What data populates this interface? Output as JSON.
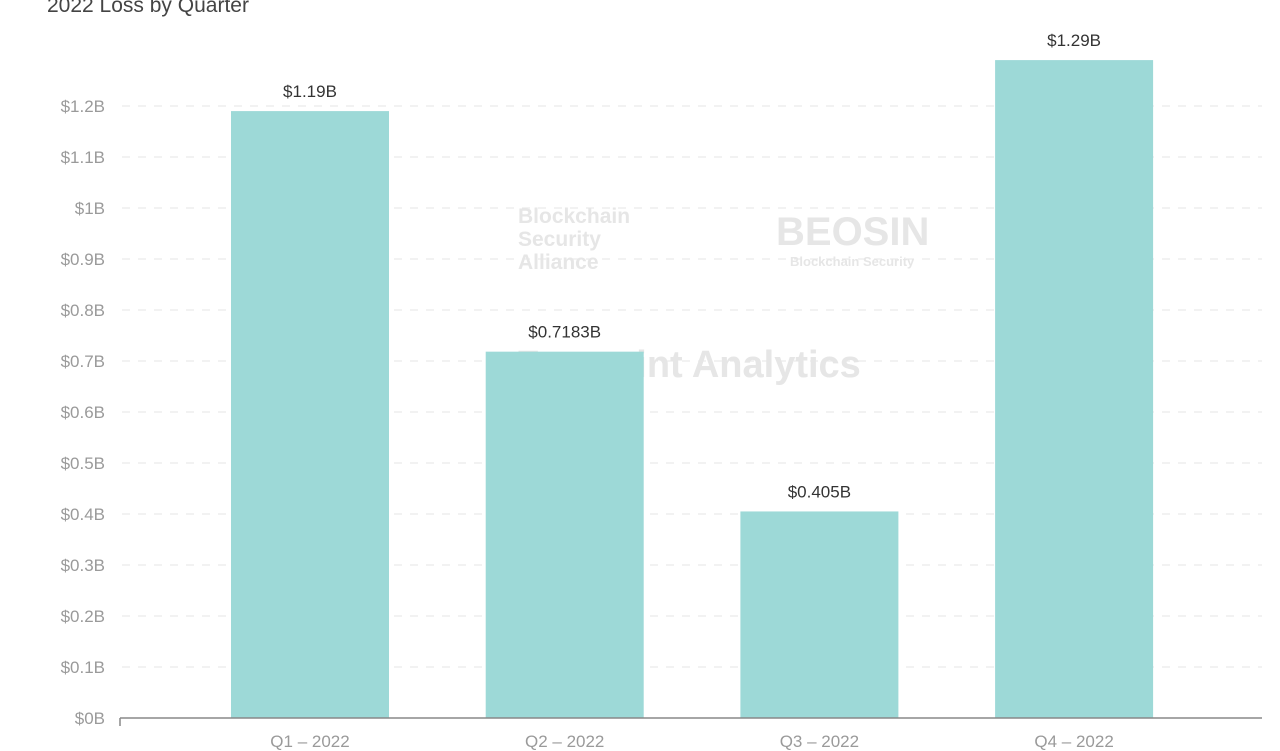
{
  "chart_data": {
    "type": "bar",
    "title": "2022 Loss by Quarter",
    "categories": [
      "Q1 - 2022",
      "Q2 - 2022",
      "Q3 - 2022",
      "Q4 - 2022"
    ],
    "values": [
      1.19,
      0.7183,
      0.405,
      1.29
    ],
    "data_labels": [
      "$1.19B",
      "$0.7183B",
      "$0.405B",
      "$1.29B"
    ],
    "unit": "$B",
    "ylim": [
      0,
      1.2
    ],
    "yticks": [
      0,
      0.1,
      0.2,
      0.3,
      0.4,
      0.5,
      0.6,
      0.7,
      0.8,
      0.9,
      1.0,
      1.1,
      1.2
    ],
    "ytick_labels": [
      "$0B",
      "$0.1B",
      "$0.2B",
      "$0.3B",
      "$0.4B",
      "$0.5B",
      "$0.6B",
      "$0.7B",
      "$0.8B",
      "$0.9B",
      "$1B",
      "$1.1B",
      "$1.2B"
    ],
    "xlabel": "",
    "ylabel": "",
    "grid": true,
    "bar_color": "#9dd9d7"
  },
  "watermarks": {
    "alliance": [
      "Blockchain",
      "Security",
      "Alliance"
    ],
    "beosin": "BEOSIN",
    "beosin_sub": "Blockchain Security",
    "footprint": "Footprint Analytics"
  }
}
